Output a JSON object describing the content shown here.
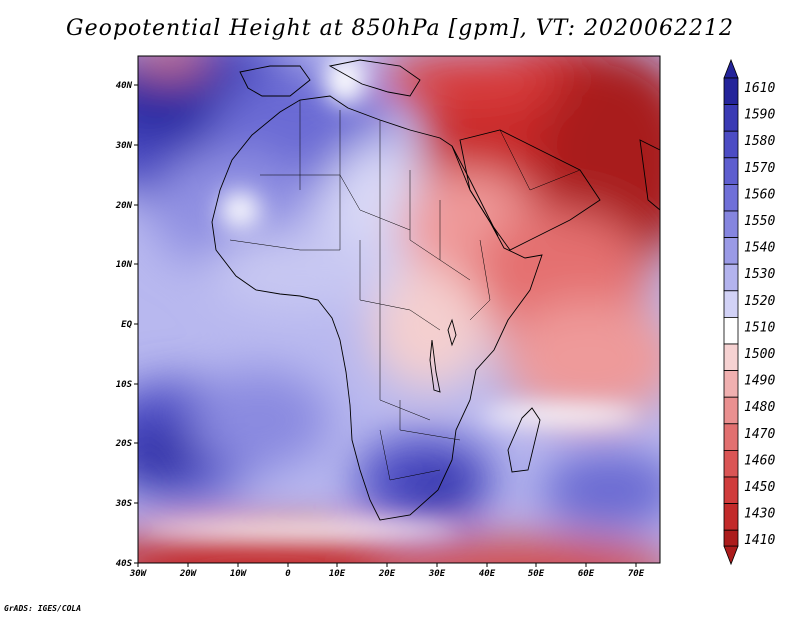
{
  "title": "Geopotential Height at 850hPa [gpm], VT: 2020062212",
  "footer": "GrADS: IGES/COLA",
  "map": {
    "lon_range": [
      -30,
      75
    ],
    "lat_range": [
      -40,
      45
    ],
    "x_ticks": [
      "30W",
      "20W",
      "10W",
      "0",
      "10E",
      "20E",
      "30E",
      "40E",
      "50E",
      "60E",
      "70E"
    ],
    "y_ticks": [
      "40S",
      "30S",
      "20S",
      "10S",
      "EQ",
      "10N",
      "20N",
      "30N",
      "40N"
    ]
  },
  "colorbar": {
    "levels": [
      "1610",
      "1590",
      "1580",
      "1570",
      "1560",
      "1550",
      "1540",
      "1530",
      "1520",
      "1510",
      "1500",
      "1490",
      "1480",
      "1470",
      "1460",
      "1450",
      "1430",
      "1410"
    ],
    "colors": [
      "#24249a",
      "#3a3ab4",
      "#4c4cc4",
      "#5e5ecf",
      "#7070d8",
      "#8585df",
      "#9a9ae6",
      "#b3b3ee",
      "#d2d2f6",
      "#ffffff",
      "#f6d2d2",
      "#f0b0b0",
      "#ea9090",
      "#e27070",
      "#da5555",
      "#d03c3c",
      "#c22a2a",
      "#ac1c1c"
    ]
  }
}
